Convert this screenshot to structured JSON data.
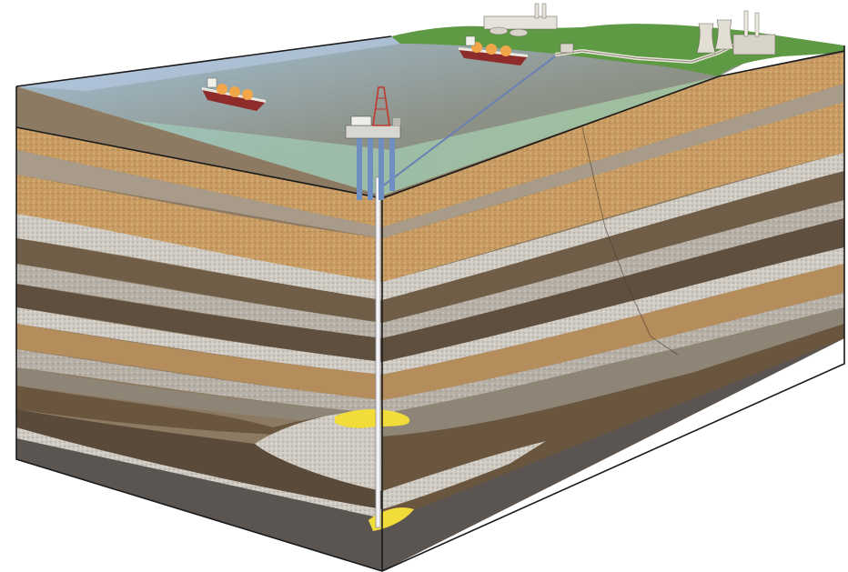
{
  "colors": {
    "background": "#ffffff",
    "sky": "#a9c3e4",
    "sea_near": "#9fc6cc",
    "sea_far": "#8f9a8a",
    "seabed": "#9bbf8a",
    "land": "#5f9a45",
    "gas_reservoir": "#f2dc3a",
    "well": "#e9e9ee",
    "pipeline": "#6a7fb4",
    "rock_light": "#bdb8ae",
    "rock_sand": "#c79b62",
    "rock_dark": "#6b5a45",
    "rock_mid": "#8d7a62",
    "basement": "#5b5552"
  },
  "icons": [
    "offshore-platform-icon",
    "lng-tanker-icon",
    "lng-terminal-tanker-icon",
    "gas-processing-plant-icon",
    "power-station-icon",
    "subsea-pipeline-icon",
    "onshore-pipeline-icon",
    "wellbore-icon",
    "gas-reservoir-icon"
  ]
}
